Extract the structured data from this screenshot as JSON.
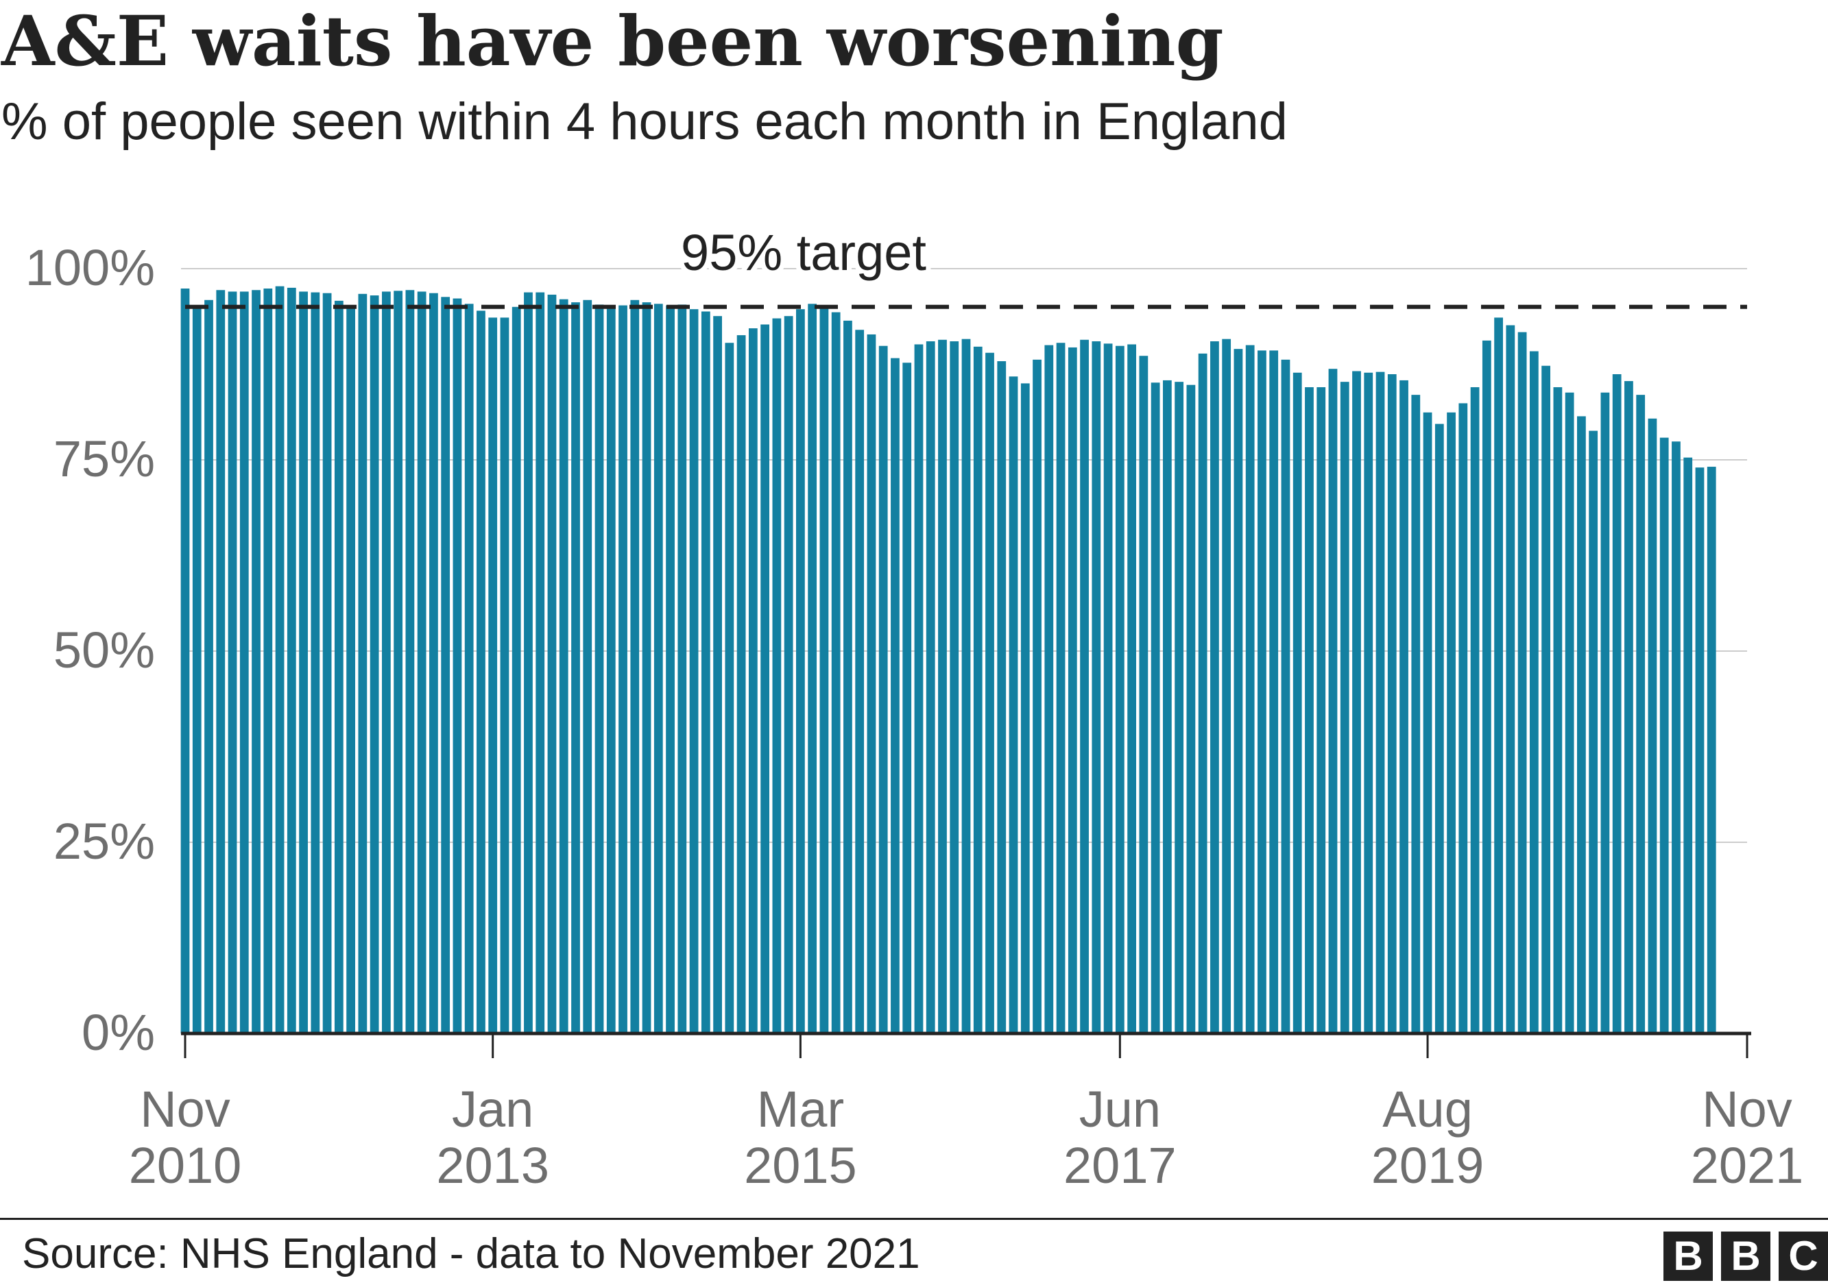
{
  "title": "A&E waits have been worsening",
  "subtitle": "% of people seen within 4 hours each month in England",
  "source": "Source: NHS England - data to November 2021",
  "logo": [
    "B",
    "B",
    "C"
  ],
  "colors": {
    "bar": "#1380a1",
    "grid": "#cccccc",
    "axis": "#222222",
    "target_line": "#222222",
    "tick_text": "#6e6e6e"
  },
  "chart_data": {
    "type": "bar",
    "title": "A&E waits have been worsening",
    "subtitle": "% of people seen within 4 hours each month in England",
    "x_start": "2010-11",
    "x_end": "2021-11",
    "x_ticks": [
      {
        "month": "2010-11",
        "label": [
          "Nov",
          "2010"
        ]
      },
      {
        "month": "2013-01",
        "label": [
          "Jan",
          "2013"
        ]
      },
      {
        "month": "2015-03",
        "label": [
          "Mar",
          "2015"
        ]
      },
      {
        "month": "2017-06",
        "label": [
          "Jun",
          "2017"
        ]
      },
      {
        "month": "2019-08",
        "label": [
          "Aug",
          "2019"
        ]
      },
      {
        "month": "2021-11",
        "label": [
          "Nov",
          "2021"
        ]
      }
    ],
    "ylim": [
      0,
      100
    ],
    "y_ticks": [
      0,
      25,
      50,
      75,
      100
    ],
    "y_tick_labels": [
      "0%",
      "25%",
      "50%",
      "75%",
      "100%"
    ],
    "grid": "horizontal",
    "reference_line": {
      "value": 95,
      "label": "95% target",
      "style": "dashed"
    },
    "values": [
      97.4,
      95.0,
      95.9,
      97.2,
      97.0,
      97.0,
      97.2,
      97.4,
      97.7,
      97.5,
      97.0,
      96.9,
      96.8,
      95.8,
      95.2,
      96.7,
      96.5,
      97.0,
      97.1,
      97.2,
      97.0,
      96.8,
      96.3,
      96.1,
      95.4,
      94.5,
      93.6,
      93.6,
      95.0,
      96.9,
      96.9,
      96.6,
      96.0,
      95.6,
      95.9,
      95.3,
      95.0,
      95.2,
      95.9,
      95.6,
      95.4,
      95.2,
      95.3,
      94.7,
      94.4,
      93.8,
      90.3,
      91.3,
      92.2,
      92.7,
      93.5,
      93.8,
      94.7,
      95.4,
      95.1,
      94.3,
      93.2,
      92.0,
      91.4,
      89.9,
      88.3,
      87.7,
      90.1,
      90.5,
      90.7,
      90.5,
      90.8,
      89.8,
      89.0,
      87.9,
      85.9,
      85.0,
      88.1,
      90.0,
      90.3,
      89.7,
      90.7,
      90.5,
      90.2,
      89.9,
      90.1,
      88.6,
      85.1,
      85.4,
      85.2,
      84.8,
      88.9,
      90.5,
      90.8,
      89.5,
      90.0,
      89.3,
      89.3,
      88.1,
      86.4,
      84.5,
      84.5,
      86.9,
      85.2,
      86.6,
      86.4,
      86.5,
      86.2,
      85.4,
      83.5,
      81.2,
      79.7,
      81.2,
      82.4,
      84.5,
      90.6,
      93.6,
      92.6,
      91.7,
      89.2,
      87.3,
      84.5,
      83.8,
      80.7,
      78.8,
      83.8,
      86.2,
      85.3,
      83.5,
      80.4,
      77.9,
      77.4,
      75.3,
      74.0,
      74.1
    ]
  }
}
